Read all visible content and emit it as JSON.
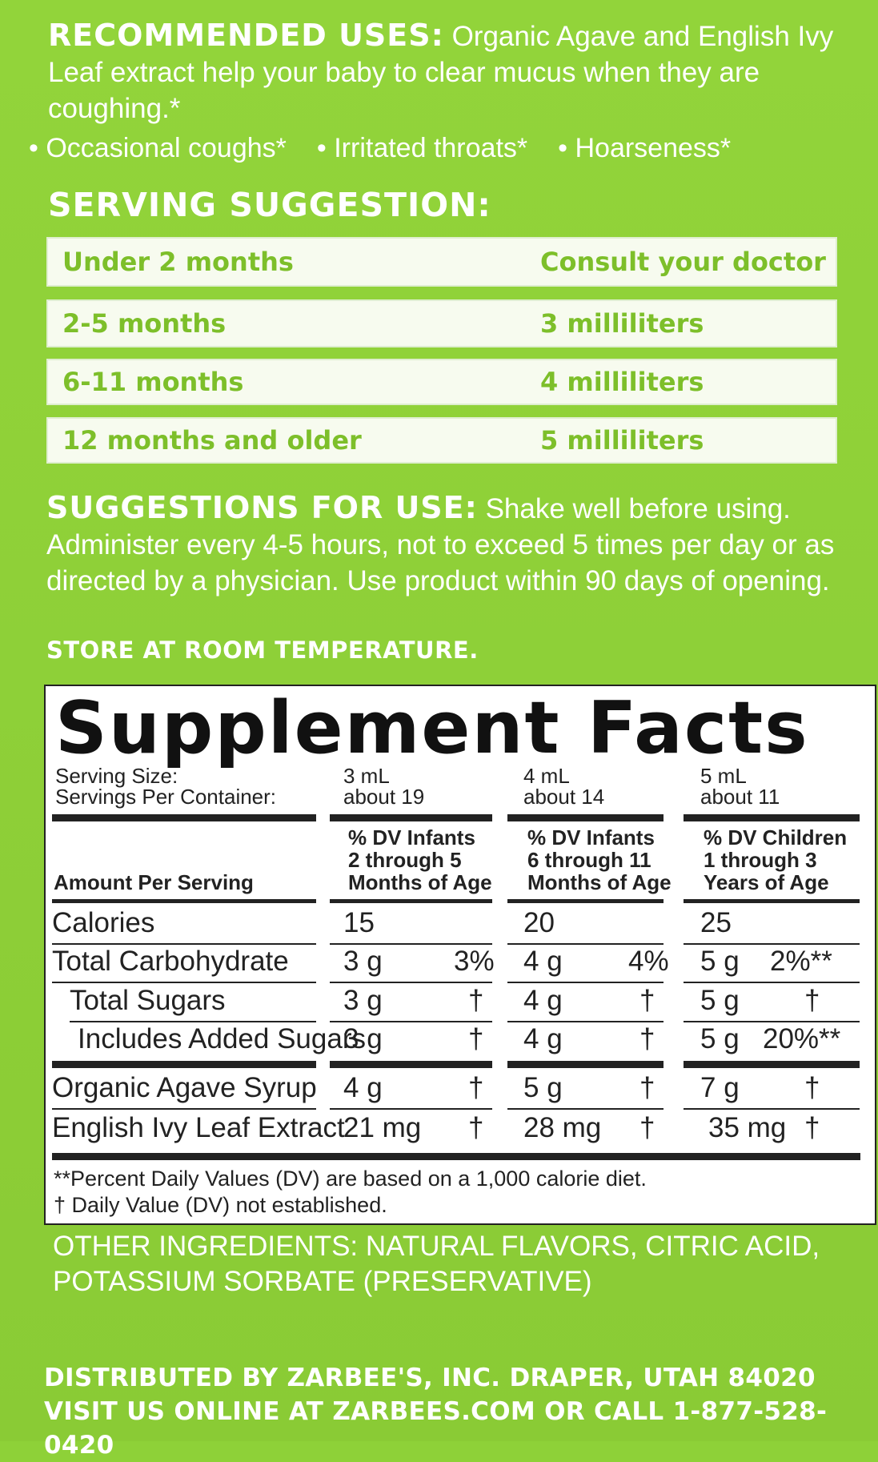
{
  "recommended": {
    "heading": "RECOMMENDED USES:",
    "text": "Organic Agave and English Ivy Leaf extract help your baby to clear mucus when they are coughing.*",
    "bullets": [
      "Occasional coughs*",
      "Irritated throats*",
      "Hoarseness*"
    ]
  },
  "serving": {
    "heading": "SERVING SUGGESTION:",
    "rows": [
      {
        "age": "Under 2 months",
        "dose": "Consult your doctor"
      },
      {
        "age": "2-5 months",
        "dose": "3 milliliters"
      },
      {
        "age": "6-11 months",
        "dose": "4 milliliters"
      },
      {
        "age": "12 months and older",
        "dose": "5 milliliters"
      }
    ]
  },
  "suggestions": {
    "heading": "SUGGESTIONS FOR USE:",
    "text": "Shake well before using. Administer every 4-5 hours, not to exceed 5 times per day or as directed by a physician. Use product within 90 days of opening."
  },
  "store": "STORE AT ROOM TEMPERATURE.",
  "facts": {
    "title": "Supplement Facts",
    "serving_size_label": "Serving Size:",
    "servings_per_container_label": "Servings Per Container:",
    "columns": [
      {
        "size": "3 mL",
        "servings": "about 19",
        "dv_header": [
          "% DV Infants",
          "2 through 5",
          "Months of Age"
        ]
      },
      {
        "size": "4 mL",
        "servings": "about 14",
        "dv_header": [
          "% DV Infants",
          "6 through 11",
          "Months of Age"
        ]
      },
      {
        "size": "5 mL",
        "servings": "about 11",
        "dv_header": [
          "% DV Children",
          "1 through 3",
          "Years of Age"
        ]
      }
    ],
    "amount_label": "Amount Per Serving",
    "rows": [
      {
        "name": "Calories",
        "vals": [
          [
            "15",
            ""
          ],
          [
            "20",
            ""
          ],
          [
            "25",
            ""
          ]
        ]
      },
      {
        "name": "Total Carbohydrate",
        "vals": [
          [
            "3 g",
            "3%"
          ],
          [
            "4 g",
            "4%"
          ],
          [
            "5 g",
            "2%**"
          ]
        ]
      },
      {
        "name": "Total Sugars",
        "vals": [
          [
            "3 g",
            "†"
          ],
          [
            "4 g",
            "†"
          ],
          [
            "5 g",
            "†"
          ]
        ]
      },
      {
        "name": "Includes Added Sugars",
        "vals": [
          [
            "3 g",
            "†"
          ],
          [
            "4 g",
            "†"
          ],
          [
            "5 g",
            "20%**"
          ]
        ]
      },
      {
        "name": "Organic Agave Syrup",
        "vals": [
          [
            "4 g",
            "†"
          ],
          [
            "5 g",
            "†"
          ],
          [
            "7 g",
            "†"
          ]
        ]
      },
      {
        "name": "English Ivy Leaf Extract",
        "vals": [
          [
            "21 mg",
            "†"
          ],
          [
            "28 mg",
            "†"
          ],
          [
            "35 mg",
            "†"
          ]
        ]
      }
    ],
    "footnote1": "**Percent Daily Values (DV) are based on a 1,000 calorie diet.",
    "footnote2": "† Daily Value (DV) not established."
  },
  "other_ingredients": "OTHER INGREDIENTS: NATURAL FLAVORS, CITRIC ACID, POTASSIUM SORBATE (PRESERVATIVE)",
  "distributor": {
    "line1": "DISTRIBUTED BY ZARBEE'S, INC. DRAPER, UTAH 84020",
    "line2": "VISIT US ONLINE AT ZARBEES.COM OR CALL 1-877-528-0420"
  }
}
